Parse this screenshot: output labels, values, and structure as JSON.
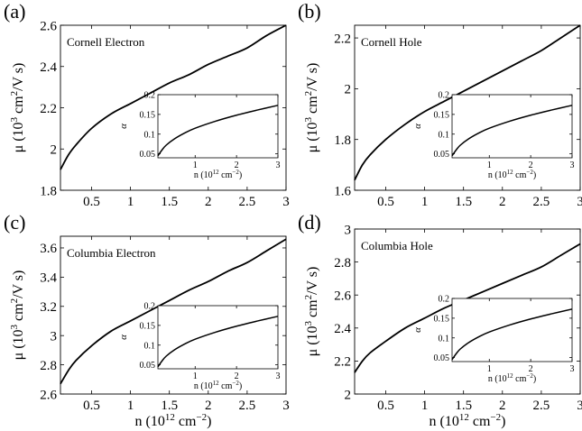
{
  "figure": {
    "x_axis_label": "n (10^12 cm^-2)",
    "y_axis_label": "μ (10^3 cm^2/V s)",
    "inset_y_label": "α",
    "inset_x_label": "n (10^12 cm^-2)"
  },
  "chart_data": [
    {
      "type": "line",
      "panel": "(a)",
      "title": "Cornell Electron",
      "xlim": [
        0.1,
        3
      ],
      "ylim": [
        1.8,
        2.6
      ],
      "xticks": [
        0.5,
        1,
        1.5,
        2,
        2.5,
        3
      ],
      "yticks": [
        1.8,
        2,
        2.2,
        2.4,
        2.6
      ],
      "yticklabels": [
        "1.8",
        "2",
        "2.2",
        "2.4",
        "2.6"
      ],
      "x": [
        0.1,
        0.2,
        0.3,
        0.5,
        0.75,
        1,
        1.25,
        1.5,
        1.75,
        2,
        2.25,
        2.5,
        2.75,
        3
      ],
      "y": [
        1.9,
        1.97,
        2.02,
        2.1,
        2.17,
        2.22,
        2.27,
        2.32,
        2.36,
        2.41,
        2.45,
        2.49,
        2.55,
        2.6
      ],
      "inset": {
        "type": "line",
        "xlim": [
          0.1,
          3
        ],
        "ylim": [
          0.04,
          0.2
        ],
        "xticks": [
          1,
          2,
          3
        ],
        "yticks": [
          0.05,
          0.1,
          0.15,
          0.2
        ],
        "yticklabels": [
          "0.05",
          "0.1",
          "0.15",
          "0.2"
        ],
        "x": [
          0.1,
          0.2,
          0.3,
          0.5,
          0.75,
          1,
          1.5,
          2,
          2.5,
          3
        ],
        "y": [
          0.045,
          0.06,
          0.072,
          0.088,
          0.103,
          0.115,
          0.133,
          0.148,
          0.161,
          0.173
        ]
      }
    },
    {
      "type": "line",
      "panel": "(b)",
      "title": "Cornell Hole",
      "xlim": [
        0.1,
        3
      ],
      "ylim": [
        1.6,
        2.25
      ],
      "xticks": [
        0.5,
        1,
        1.5,
        2,
        2.5,
        3
      ],
      "yticks": [
        1.6,
        1.8,
        2,
        2.2
      ],
      "yticklabels": [
        "1.6",
        "1.8",
        "2",
        "2.2"
      ],
      "x": [
        0.1,
        0.2,
        0.3,
        0.5,
        0.75,
        1,
        1.25,
        1.5,
        1.75,
        2,
        2.25,
        2.5,
        2.75,
        3
      ],
      "y": [
        1.64,
        1.7,
        1.74,
        1.8,
        1.86,
        1.91,
        1.95,
        1.99,
        2.03,
        2.07,
        2.11,
        2.15,
        2.2,
        2.25
      ],
      "inset": {
        "type": "line",
        "xlim": [
          0.1,
          3
        ],
        "ylim": [
          0.04,
          0.2
        ],
        "xticks": [
          1,
          2,
          3
        ],
        "yticks": [
          0.05,
          0.1,
          0.15,
          0.2
        ],
        "yticklabels": [
          "0.05",
          "0.1",
          "0.15",
          "0.2"
        ],
        "x": [
          0.1,
          0.2,
          0.3,
          0.5,
          0.75,
          1,
          1.5,
          2,
          2.5,
          3
        ],
        "y": [
          0.045,
          0.06,
          0.072,
          0.088,
          0.103,
          0.115,
          0.133,
          0.148,
          0.161,
          0.173
        ]
      }
    },
    {
      "type": "line",
      "panel": "(c)",
      "title": "Columbia Electron",
      "xlim": [
        0.1,
        3
      ],
      "ylim": [
        2.6,
        3.68
      ],
      "xticks": [
        0.5,
        1,
        1.5,
        2,
        2.5,
        3
      ],
      "yticks": [
        2.6,
        2.8,
        3,
        3.2,
        3.4,
        3.6
      ],
      "yticklabels": [
        "2.6",
        "2.8",
        "3",
        "3.2",
        "3.4",
        "3.6"
      ],
      "x": [
        0.1,
        0.2,
        0.3,
        0.5,
        0.75,
        1,
        1.25,
        1.5,
        1.75,
        2,
        2.25,
        2.5,
        2.75,
        3
      ],
      "y": [
        2.67,
        2.76,
        2.83,
        2.93,
        3.03,
        3.1,
        3.17,
        3.24,
        3.31,
        3.37,
        3.44,
        3.5,
        3.58,
        3.66
      ],
      "inset": {
        "type": "line",
        "xlim": [
          0.1,
          3
        ],
        "ylim": [
          0.04,
          0.2
        ],
        "xticks": [
          1,
          2,
          3
        ],
        "yticks": [
          0.05,
          0.1,
          0.15,
          0.2
        ],
        "yticklabels": [
          "0.05",
          "0.1",
          "0.15",
          "0.2"
        ],
        "x": [
          0.1,
          0.2,
          0.3,
          0.5,
          0.75,
          1,
          1.5,
          2,
          2.5,
          3
        ],
        "y": [
          0.045,
          0.06,
          0.072,
          0.088,
          0.103,
          0.115,
          0.133,
          0.148,
          0.161,
          0.173
        ]
      }
    },
    {
      "type": "line",
      "panel": "(d)",
      "title": "Columbia Hole",
      "xlim": [
        0.1,
        3
      ],
      "ylim": [
        2,
        3
      ],
      "xticks": [
        0.5,
        1,
        1.5,
        2,
        2.5,
        3
      ],
      "yticks": [
        2,
        2.2,
        2.4,
        2.6,
        2.8,
        3
      ],
      "yticklabels": [
        "2",
        "2.2",
        "2.4",
        "2.6",
        "2.8",
        "3"
      ],
      "x": [
        0.1,
        0.2,
        0.3,
        0.5,
        0.75,
        1,
        1.25,
        1.5,
        1.75,
        2,
        2.25,
        2.5,
        2.75,
        3
      ],
      "y": [
        2.13,
        2.2,
        2.25,
        2.32,
        2.4,
        2.46,
        2.52,
        2.57,
        2.62,
        2.67,
        2.72,
        2.77,
        2.84,
        2.91
      ],
      "inset": {
        "type": "line",
        "xlim": [
          0.1,
          3
        ],
        "ylim": [
          0.04,
          0.2
        ],
        "xticks": [
          1,
          2,
          3
        ],
        "yticks": [
          0.05,
          0.1,
          0.15,
          0.2
        ],
        "yticklabels": [
          "0.05",
          "0.1",
          "0.15",
          "0.2"
        ],
        "x": [
          0.1,
          0.2,
          0.3,
          0.5,
          0.75,
          1,
          1.5,
          2,
          2.5,
          3
        ],
        "y": [
          0.045,
          0.06,
          0.072,
          0.088,
          0.103,
          0.115,
          0.133,
          0.148,
          0.161,
          0.173
        ]
      }
    }
  ]
}
